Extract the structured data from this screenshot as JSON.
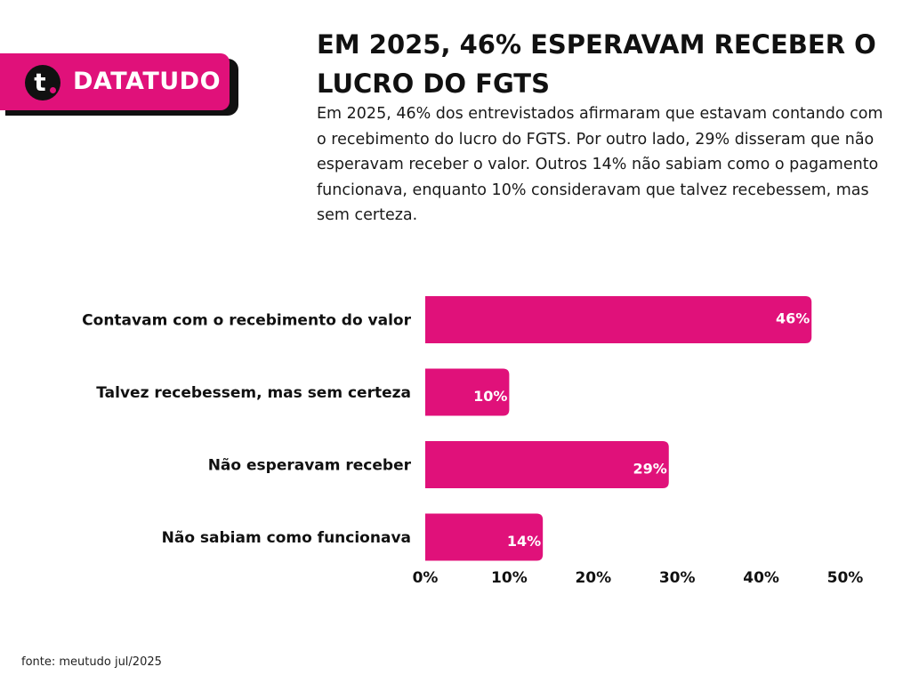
{
  "brand": {
    "logo_letter": "t",
    "name": "DATATUDO",
    "logo_icon": "datatudo-logo-icon"
  },
  "header": {
    "title": "EM 2025, 46% ESPERAVAM RECEBER O LUCRO DO FGTS",
    "description": "Em 2025, 46% dos entrevistados afirmaram que estavam contando com o recebimento do lucro do FGTS. Por outro lado, 29% disseram que não esperavam receber o valor. Outros 14% não sabiam como o pagamento funcionava, enquanto 10% consideravam que talvez recebessem, mas sem certeza."
  },
  "footer": {
    "source": "fonte: meutudo jul/2025"
  },
  "colors": {
    "accent": "#e0117a",
    "text": "#111111",
    "bar_label": "#ffffff"
  },
  "chart_data": {
    "type": "bar",
    "orientation": "horizontal",
    "categories": [
      "Contavam com o recebimento do valor",
      "Talvez recebessem, mas sem certeza",
      "Não esperavam receber",
      "Não sabiam como funcionava"
    ],
    "values": [
      46,
      10,
      29,
      14
    ],
    "value_labels": [
      "46%",
      "10%",
      "29%",
      "14%"
    ],
    "title": "",
    "xlabel": "",
    "ylabel": "",
    "xlim": [
      0,
      50
    ],
    "x_ticks": [
      0,
      10,
      20,
      30,
      40,
      50
    ],
    "x_tick_labels": [
      "0%",
      "10%",
      "20%",
      "30%",
      "40%",
      "50%"
    ],
    "grid": false,
    "legend": "none"
  }
}
